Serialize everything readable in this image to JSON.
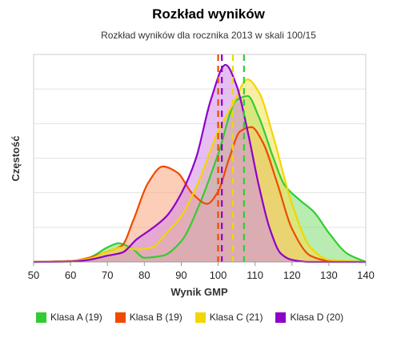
{
  "chart_data": {
    "type": "area",
    "title": "Rozkład wyników",
    "subtitle": "Rozkład wyników dla rocznika 2013 w skali 100/15",
    "xlabel": "Wynik GMP",
    "ylabel": "Częstość",
    "xlim": [
      50,
      140
    ],
    "ylim": [
      0,
      1
    ],
    "xticks": [
      "50",
      "60",
      "70",
      "80",
      "90",
      "100",
      "110",
      "120",
      "130",
      "140"
    ],
    "grid": true,
    "legend_position": "bottom-left",
    "series": [
      {
        "name": "Klasa A (19)",
        "color": "#33cc33",
        "fill": "#7fdc6f",
        "mean": 107,
        "points": [
          [
            50,
            0
          ],
          [
            60,
            0.005
          ],
          [
            65,
            0.02
          ],
          [
            70,
            0.07
          ],
          [
            73,
            0.09
          ],
          [
            77,
            0.06
          ],
          [
            80,
            0.02
          ],
          [
            85,
            0.03
          ],
          [
            90,
            0.1
          ],
          [
            95,
            0.28
          ],
          [
            100,
            0.52
          ],
          [
            105,
            0.78
          ],
          [
            108,
            0.8
          ],
          [
            111,
            0.7
          ],
          [
            115,
            0.5
          ],
          [
            118,
            0.37
          ],
          [
            122,
            0.3
          ],
          [
            126,
            0.24
          ],
          [
            130,
            0.14
          ],
          [
            135,
            0.04
          ],
          [
            140,
            0
          ]
        ]
      },
      {
        "name": "Klasa B (19)",
        "color": "#f04a00",
        "fill": "#f9a47c",
        "mean": 100,
        "points": [
          [
            50,
            0
          ],
          [
            60,
            0.005
          ],
          [
            65,
            0.02
          ],
          [
            70,
            0.05
          ],
          [
            74,
            0.08
          ],
          [
            77,
            0.2
          ],
          [
            81,
            0.38
          ],
          [
            85,
            0.46
          ],
          [
            89,
            0.43
          ],
          [
            93,
            0.33
          ],
          [
            97,
            0.28
          ],
          [
            100,
            0.34
          ],
          [
            103,
            0.5
          ],
          [
            106,
            0.63
          ],
          [
            109,
            0.65
          ],
          [
            112,
            0.58
          ],
          [
            116,
            0.38
          ],
          [
            120,
            0.16
          ],
          [
            125,
            0.03
          ],
          [
            130,
            0.005
          ],
          [
            140,
            0
          ]
        ]
      },
      {
        "name": "Klasa C (21)",
        "color": "#f2d600",
        "fill": "#f4e156",
        "mean": 104,
        "points": [
          [
            50,
            0
          ],
          [
            60,
            0.005
          ],
          [
            65,
            0.015
          ],
          [
            70,
            0.05
          ],
          [
            74,
            0.07
          ],
          [
            78,
            0.06
          ],
          [
            82,
            0.07
          ],
          [
            86,
            0.14
          ],
          [
            90,
            0.22
          ],
          [
            95,
            0.4
          ],
          [
            100,
            0.63
          ],
          [
            104,
            0.76
          ],
          [
            108,
            0.88
          ],
          [
            111,
            0.82
          ],
          [
            115,
            0.6
          ],
          [
            120,
            0.28
          ],
          [
            125,
            0.07
          ],
          [
            130,
            0.01
          ],
          [
            140,
            0
          ]
        ]
      },
      {
        "name": "Klasa D (20)",
        "color": "#8e00c8",
        "fill": "#cf8ae8",
        "mean": 101,
        "points": [
          [
            50,
            0
          ],
          [
            60,
            0.002
          ],
          [
            65,
            0.01
          ],
          [
            70,
            0.03
          ],
          [
            74,
            0.045
          ],
          [
            78,
            0.11
          ],
          [
            82,
            0.16
          ],
          [
            86,
            0.22
          ],
          [
            90,
            0.33
          ],
          [
            94,
            0.5
          ],
          [
            98,
            0.78
          ],
          [
            102,
            0.95
          ],
          [
            105,
            0.85
          ],
          [
            108,
            0.63
          ],
          [
            111,
            0.37
          ],
          [
            114,
            0.16
          ],
          [
            117,
            0.04
          ],
          [
            120,
            0.01
          ],
          [
            125,
            0
          ],
          [
            140,
            0
          ]
        ]
      }
    ]
  }
}
